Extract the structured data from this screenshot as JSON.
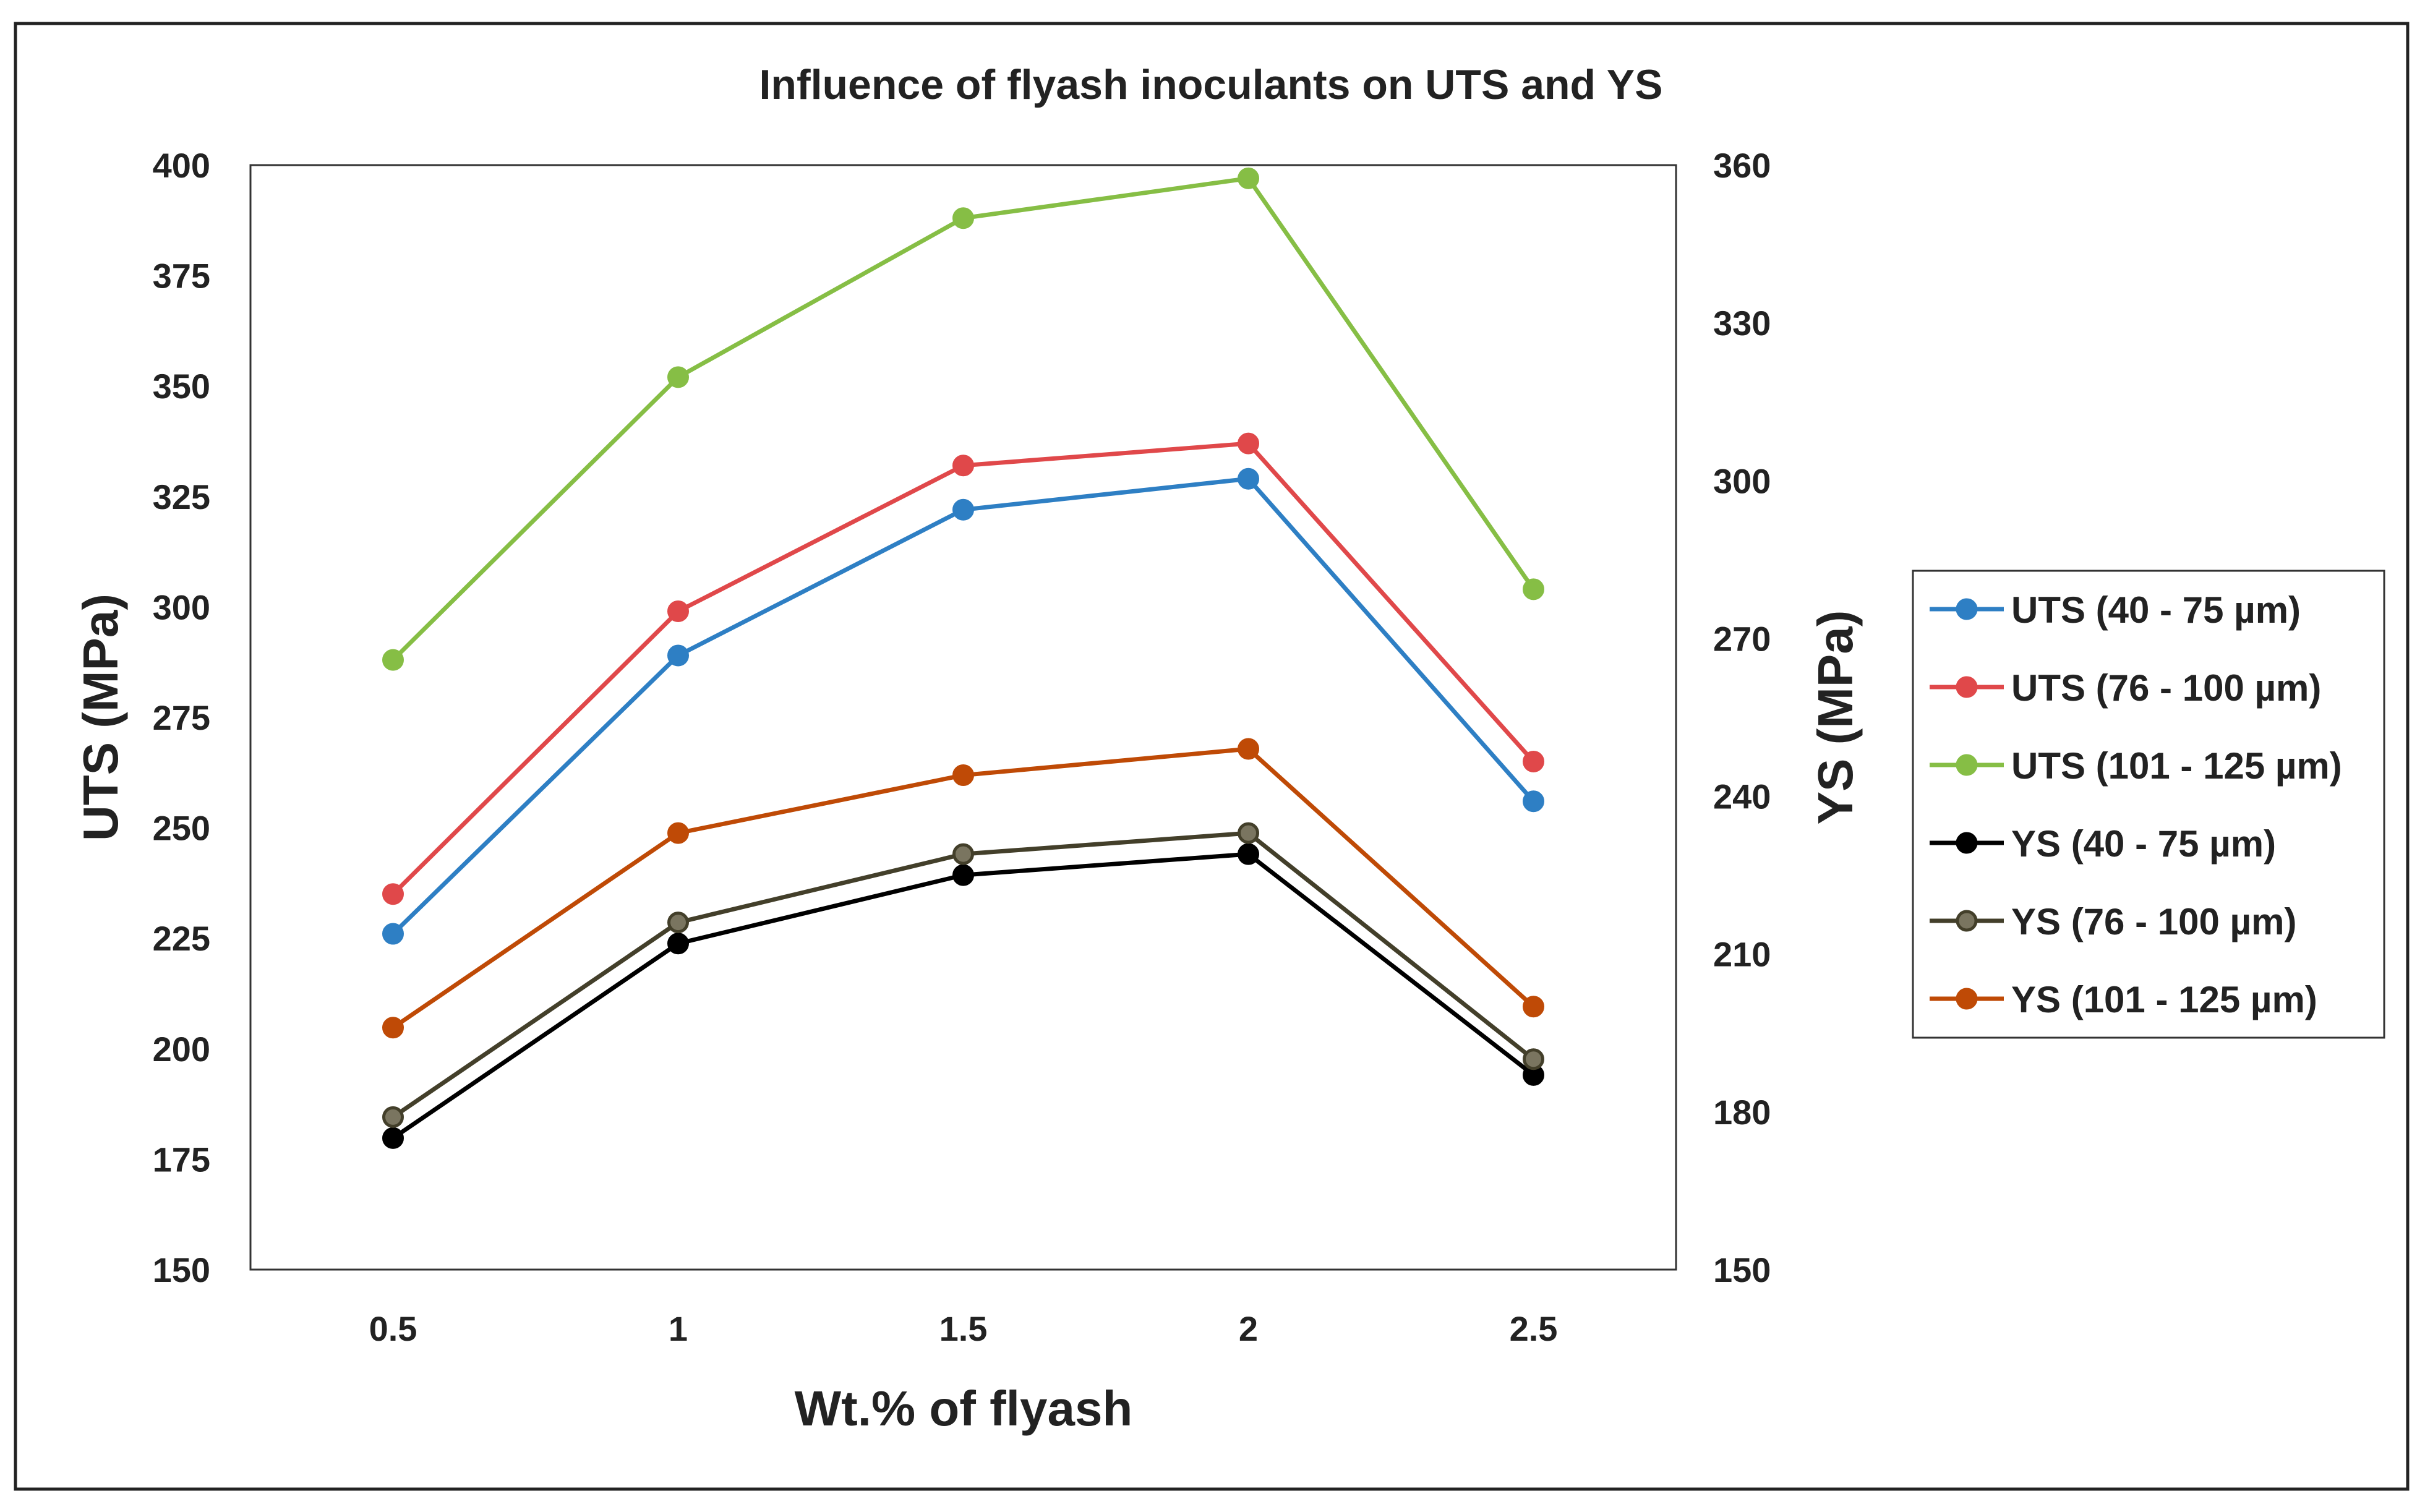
{
  "chart_data": {
    "type": "line",
    "title": "Influence of flyash inoculants on UTS and YS",
    "xlabel": "Wt.% of flyash",
    "ylabel": "UTS (MPa)",
    "y2label": "YS (MPa)",
    "categories": [
      "0.5",
      "1",
      "1.5",
      "2",
      "2.5"
    ],
    "ylim": [
      150,
      400
    ],
    "yticks": [
      150,
      175,
      200,
      225,
      250,
      275,
      300,
      325,
      350,
      375,
      400
    ],
    "y2lim": [
      150,
      360
    ],
    "y2ticks": [
      150,
      180,
      210,
      240,
      270,
      300,
      330,
      360
    ],
    "grid": false,
    "legend_position": "right",
    "series": [
      {
        "name": "UTS (40 - 75 µm)",
        "axis": "left",
        "color": "#2E7FC4",
        "values": [
          226,
          289,
          322,
          329,
          256
        ]
      },
      {
        "name": "UTS (76 - 100 µm)",
        "axis": "left",
        "color": "#E0484A",
        "values": [
          235,
          299,
          332,
          337,
          265
        ]
      },
      {
        "name": "UTS (101 - 125 µm)",
        "axis": "left",
        "color": "#86BE45",
        "values": [
          288,
          352,
          388,
          397,
          304
        ]
      },
      {
        "name": "YS (40 - 75 µm)",
        "axis": "right",
        "color": "#000000",
        "values": [
          175,
          212,
          225,
          229,
          187
        ]
      },
      {
        "name": "YS (76 - 100 µm)",
        "axis": "right",
        "color": "#433F2A",
        "marker_fill": "#7A7560",
        "values": [
          179,
          216,
          229,
          233,
          190
        ]
      },
      {
        "name": "YS (101 - 125 µm)",
        "axis": "right",
        "color": "#BF4A06",
        "values": [
          196,
          233,
          244,
          249,
          200
        ]
      }
    ]
  }
}
